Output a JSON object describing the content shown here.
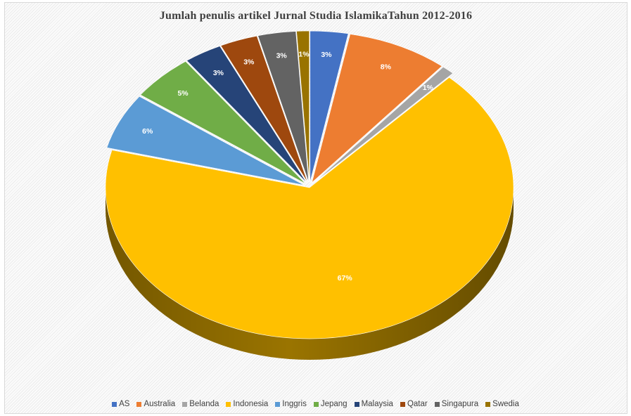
{
  "chart_data": {
    "type": "pie",
    "title": "Jumlah  penulis artikel Jurnal Studia IslamikaTahun 2012-2016",
    "style": "3d",
    "legend_position": "bottom",
    "categories": [
      "AS",
      "Australia",
      "Belanda",
      "Indonesia",
      "Inggris",
      "Jepang",
      "Malaysia",
      "Qatar",
      "Singapura",
      "Swedia"
    ],
    "values": [
      3,
      8,
      1,
      67,
      6,
      5,
      3,
      3,
      3,
      1
    ],
    "labels": [
      "3%",
      "8%",
      "1%",
      "67%",
      "6%",
      "5%",
      "3%",
      "3%",
      "3%",
      "1%"
    ],
    "colors": [
      "#4472C4",
      "#ED7D31",
      "#A5A5A5",
      "#FFC000",
      "#5B9BD5",
      "#70AD47",
      "#264478",
      "#9E480E",
      "#636363",
      "#997300"
    ],
    "side_colors": [
      "#27467f",
      "#a4501c",
      "#6e6e6e",
      "#9a7400",
      "#36628d",
      "#437029",
      "#142848",
      "#5e2807",
      "#3b3b3b",
      "#5c4500"
    ]
  }
}
